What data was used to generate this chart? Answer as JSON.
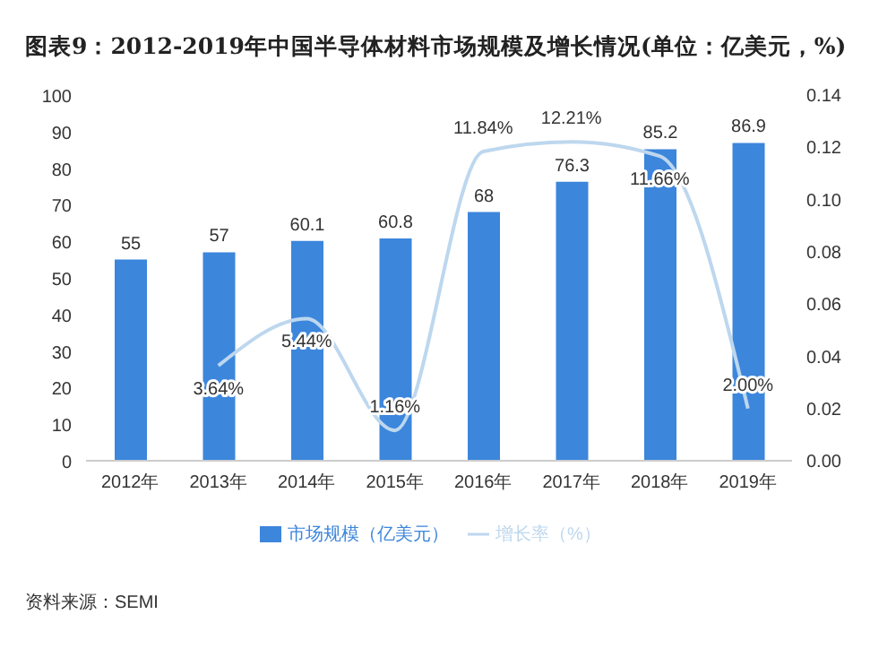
{
  "chart_data": {
    "type": "bar",
    "title": "图表9：2012-2019年中国半导体材料市场规模及增长情况(单位：亿美元，%)",
    "categories": [
      "2012年",
      "2013年",
      "2014年",
      "2015年",
      "2016年",
      "2017年",
      "2018年",
      "2019年"
    ],
    "series": [
      {
        "name": "市场规模（亿美元）",
        "color": "#3c86dc",
        "values": [
          55,
          57,
          60.1,
          60.8,
          68,
          76.3,
          85.2,
          86.9
        ],
        "value_labels": [
          "55",
          "57",
          "60.1",
          "60.8",
          "68",
          "76.3",
          "85.2",
          "86.9"
        ]
      },
      {
        "name": "增长率（%）",
        "type": "line",
        "axis": "y2",
        "color": "#bdd7ee",
        "values": [
          null,
          0.0364,
          0.0544,
          0.0116,
          0.1184,
          0.1221,
          0.1166,
          0.02
        ],
        "value_labels": [
          null,
          "3.64%",
          "5.44%",
          "1.16%",
          "11.84%",
          "12.21%",
          "11.66%",
          "2.00%"
        ]
      }
    ],
    "ylim": [
      0,
      100
    ],
    "yticks": [
      0,
      10,
      20,
      30,
      40,
      50,
      60,
      70,
      80,
      90,
      100
    ],
    "y2lim": [
      0,
      0.14
    ],
    "y2ticks": [
      {
        "value": 0,
        "label": "0.00"
      },
      0.02,
      0.04,
      0.06,
      0.08,
      {
        "value": 0.1,
        "label": "0.10"
      },
      0.12,
      0.14
    ],
    "legend": "bottom",
    "marker": "none",
    "annotations": [
      "资料来源：SEMI"
    ]
  }
}
